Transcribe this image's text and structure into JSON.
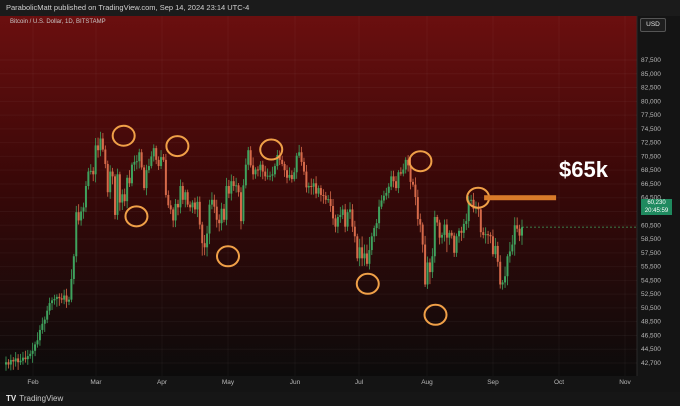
{
  "header": {
    "publisher_line": "ParabolicMatt published on TradingView.com, Sep 14, 2024 23:14 UTC-4"
  },
  "symbol": "Bitcoin / U.S. Dollar, 1D, BITSTAMP",
  "currency": "USD",
  "last_price": {
    "value": "60,230",
    "timer": "20:45:59"
  },
  "annotation": {
    "label": "$65k"
  },
  "footer": {
    "brand": "TradingView"
  },
  "colors": {
    "up": "#3fa35e",
    "down": "#d66a4a",
    "circle": "#f0a048",
    "resistance": "#d97b2a",
    "bg_top": "#6b0f0f",
    "bg_bottom": "#0f0f0f"
  },
  "chart_data": {
    "type": "candlestick",
    "yaxis_ticks": [
      "87,500",
      "85,000",
      "82,500",
      "80,000",
      "77,500",
      "74,500",
      "72,500",
      "70,500",
      "68,500",
      "66,500",
      "64,500",
      "62,500",
      "60,500",
      "58,500",
      "57,500",
      "55,500",
      "54,500",
      "52,500",
      "50,500",
      "48,500",
      "46,500",
      "44,500",
      "42,700"
    ],
    "xaxis_ticks": [
      "Feb",
      "Mar",
      "Apr",
      "May",
      "Jun",
      "Jul",
      "Aug",
      "Sep",
      "Oct",
      "Nov"
    ],
    "resistance_level": 64500,
    "circled_points": [
      {
        "date": "Mar 14",
        "price": 73500
      },
      {
        "date": "Mar 20",
        "price": 61800
      },
      {
        "date": "Apr 8",
        "price": 72000
      },
      {
        "date": "May 1",
        "price": 57000
      },
      {
        "date": "May 21",
        "price": 71500
      },
      {
        "date": "Jul 5",
        "price": 54000
      },
      {
        "date": "Jul 29",
        "price": 69800
      },
      {
        "date": "Aug 5",
        "price": 49500
      },
      {
        "date": "Aug 25",
        "price": 64500
      }
    ],
    "closes": [
      42800,
      42500,
      43100,
      42900,
      43300,
      42800,
      43000,
      43400,
      43200,
      43600,
      43900,
      44300,
      45200,
      45800,
      47300,
      48200,
      48800,
      50100,
      51200,
      51600,
      51800,
      52100,
      51900,
      51700,
      52300,
      51400,
      51700,
      54600,
      57000,
      62400,
      61200,
      62500,
      63100,
      66200,
      68300,
      68400,
      67900,
      72100,
      71400,
      73100,
      71500,
      69400,
      65300,
      68300,
      67600,
      62000,
      67900,
      63800,
      65000,
      64000,
      67400,
      66600,
      69300,
      69700,
      69800,
      71100,
      68900,
      65900,
      68500,
      69100,
      70500,
      71700,
      70000,
      69100,
      70400,
      70000,
      64900,
      63400,
      62800,
      61200,
      63600,
      63100,
      66200,
      64200,
      65300,
      63500,
      63100,
      63800,
      62800,
      63900,
      60600,
      58200,
      57900,
      59300,
      63500,
      64200,
      63200,
      61300,
      60800,
      62900,
      61300,
      66200,
      65100,
      66900,
      66200,
      66300,
      65300,
      61100,
      66300,
      69300,
      71400,
      69200,
      67900,
      68600,
      68500,
      69300,
      68300,
      67600,
      67700,
      67700,
      67900,
      69100,
      70700,
      70000,
      69400,
      68500,
      67400,
      67800,
      67200,
      68200,
      70600,
      71100,
      69700,
      68300,
      66000,
      66200,
      66100,
      66600,
      65100,
      65900,
      64900,
      64800,
      64200,
      64300,
      63300,
      61500,
      60300,
      61700,
      62000,
      62800,
      60300,
      62400,
      62800,
      60300,
      58900,
      56700,
      57900,
      56700,
      57400,
      55900,
      57700,
      58900,
      60100,
      60800,
      63200,
      64100,
      64800,
      65200,
      66100,
      67600,
      66900,
      65900,
      68200,
      68000,
      68600,
      70000,
      69200,
      66800,
      66400,
      64600,
      61400,
      60600,
      58100,
      53900,
      56100,
      55100,
      57000,
      61700,
      60900,
      58700,
      59100,
      60600,
      58700,
      59400,
      59000,
      57500,
      58900,
      59700,
      59400,
      60700,
      61100,
      64100,
      64200,
      62900,
      63100,
      62800,
      59500,
      59100,
      59200,
      59100,
      58900,
      57300,
      58000,
      56200,
      53900,
      54200,
      54800,
      57000,
      57600,
      58100,
      60500,
      60000,
      59000,
      60200
    ],
    "current_price": 60230
  }
}
